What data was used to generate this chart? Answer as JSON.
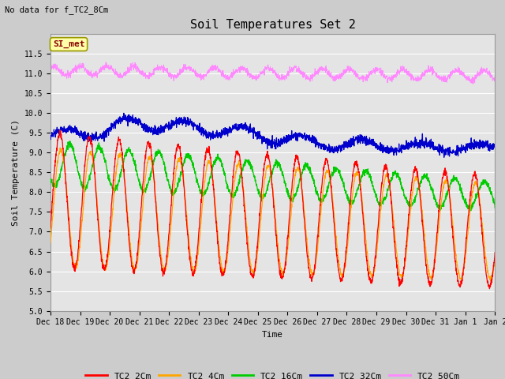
{
  "title": "Soil Temperatures Set 2",
  "subtitle": "No data for f_TC2_8Cm",
  "xlabel": "Time",
  "ylabel": "Soil Temperature (C)",
  "ylim": [
    5.0,
    12.0
  ],
  "yticks": [
    5.0,
    5.5,
    6.0,
    6.5,
    7.0,
    7.5,
    8.0,
    8.5,
    9.0,
    9.5,
    10.0,
    10.5,
    11.0,
    11.5
  ],
  "xtick_labels": [
    "Dec 18",
    "Dec 19",
    "Dec 20",
    "Dec 21",
    "Dec 22",
    "Dec 23",
    "Dec 24",
    "Dec 25",
    "Dec 26",
    "Dec 27",
    "Dec 28",
    "Dec 29",
    "Dec 30",
    "Dec 31",
    "Jan 1",
    "Jan 2"
  ],
  "colors": {
    "TC2_2Cm": "#ff0000",
    "TC2_4Cm": "#ffa500",
    "TC2_16Cm": "#00cc00",
    "TC2_32Cm": "#0000cc",
    "TC2_50Cm": "#ff88ff"
  },
  "legend_labels": [
    "TC2_2Cm",
    "TC2_4Cm",
    "TC2_16Cm",
    "TC2_32Cm",
    "TC2_50Cm"
  ],
  "annotation_box": "SI_met",
  "annotation_box_bg": "#ffffaa",
  "annotation_box_border": "#999900",
  "plot_bg_color": "#e8e8e8",
  "grid_color": "#ffffff",
  "n_points": 2160,
  "n_days": 15
}
